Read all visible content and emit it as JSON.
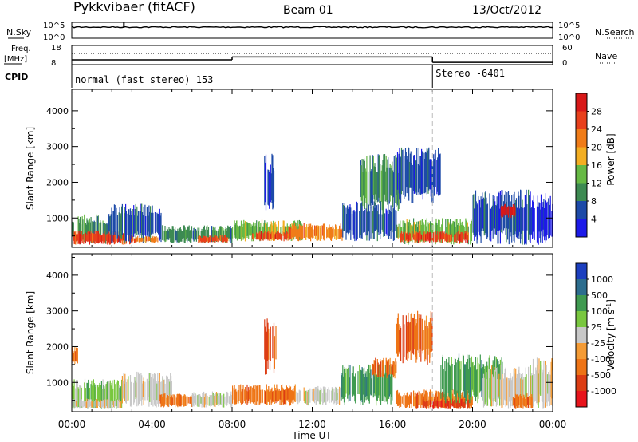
{
  "header": {
    "station": "Pykkvibaer (fitACF)",
    "beam": "Beam 01",
    "date": "13/Oct/2012"
  },
  "summary_panels": {
    "nsky_label": "N.Sky",
    "nsearch_label": "N.Search",
    "nsky_ticks": [
      "10^5",
      "10^0"
    ],
    "nsearch_ticks": [
      "10^5",
      "10^0"
    ],
    "freq_label": "Freq.",
    "freq_unit": "[MHz]",
    "freq_ticks": [
      "18",
      "8"
    ],
    "nave_label": "Nave",
    "nave_ticks": [
      "60",
      "0"
    ],
    "cpid_label": "CPID",
    "cpid_segments": [
      {
        "label": "normal (fast stereo) 153",
        "start_hour": 0
      },
      {
        "label": "Stereo -6401",
        "start_hour": 18.0
      }
    ],
    "freq_trace": [
      {
        "start": 0,
        "end": 8.0,
        "value": 10.5
      },
      {
        "start": 8.0,
        "end": 18.0,
        "value": 12.0
      },
      {
        "start": 18.0,
        "end": 24.0,
        "value": 9.2
      }
    ]
  },
  "chart_data": [
    {
      "type": "heatmap",
      "name": "power-panel",
      "xlabel": "",
      "ylabel": "Slant Range [km]",
      "xlim": [
        0,
        24
      ],
      "ylim": [
        180,
        4600
      ],
      "yticks": [
        1000,
        2000,
        3000,
        4000
      ],
      "colorbar": {
        "label": "Power [dB]",
        "ticks": [
          "28",
          "24",
          "20",
          "16",
          "12",
          "8",
          "4"
        ],
        "colors": [
          "#d81818",
          "#e8401c",
          "#f07c18",
          "#f3ae22",
          "#66b944",
          "#3d8a52",
          "#1d4aa8",
          "#1c1ae8"
        ]
      },
      "regions": [
        {
          "x0": 0.0,
          "x1": 1.8,
          "y0": 250,
          "y1": 1100,
          "level": 5
        },
        {
          "x0": 0.0,
          "x1": 3.0,
          "y0": 250,
          "y1": 650,
          "level": 1
        },
        {
          "x0": 1.8,
          "x1": 4.5,
          "y0": 300,
          "y1": 1400,
          "level": 6
        },
        {
          "x0": 3.0,
          "x1": 4.3,
          "y0": 300,
          "y1": 500,
          "level": 2
        },
        {
          "x0": 4.5,
          "x1": 8.0,
          "y0": 300,
          "y1": 800,
          "level": 5
        },
        {
          "x0": 6.3,
          "x1": 7.8,
          "y0": 300,
          "y1": 520,
          "level": 1
        },
        {
          "x0": 8.0,
          "x1": 11.5,
          "y0": 350,
          "y1": 950,
          "level": 4
        },
        {
          "x0": 9.0,
          "x1": 10.8,
          "y0": 350,
          "y1": 650,
          "level": 1
        },
        {
          "x0": 10.8,
          "x1": 13.5,
          "y0": 350,
          "y1": 850,
          "level": 2
        },
        {
          "x0": 9.6,
          "x1": 10.2,
          "y0": 1200,
          "y1": 2800,
          "level": 6
        },
        {
          "x0": 13.5,
          "x1": 16.2,
          "y0": 350,
          "y1": 1500,
          "level": 6
        },
        {
          "x0": 14.4,
          "x1": 16.4,
          "y0": 1200,
          "y1": 2800,
          "level": 5
        },
        {
          "x0": 16.2,
          "x1": 20.0,
          "y0": 250,
          "y1": 1000,
          "level": 4
        },
        {
          "x0": 16.4,
          "x1": 19.8,
          "y0": 300,
          "y1": 650,
          "level": 1
        },
        {
          "x0": 16.2,
          "x1": 18.4,
          "y0": 1400,
          "y1": 3000,
          "level": 6
        },
        {
          "x0": 20.0,
          "x1": 23.0,
          "y0": 250,
          "y1": 1800,
          "level": 6
        },
        {
          "x0": 21.4,
          "x1": 22.2,
          "y0": 1000,
          "y1": 1400,
          "level": 0
        },
        {
          "x0": 23.0,
          "x1": 24.0,
          "y0": 250,
          "y1": 1700,
          "level": 7
        }
      ]
    },
    {
      "type": "heatmap",
      "name": "velocity-panel",
      "xlabel": "Time UT",
      "ylabel": "Slant Range [km]",
      "xlim": [
        0,
        24
      ],
      "ylim": [
        180,
        4600
      ],
      "yticks": [
        1000,
        2000,
        3000,
        4000
      ],
      "xticks": [
        "00:00",
        "04:00",
        "08:00",
        "12:00",
        "16:00",
        "20:00",
        "00:00"
      ],
      "colorbar": {
        "label": "Velocity [m s^-1]",
        "ticks": [
          "1000",
          "500",
          "100",
          "25",
          "-25",
          "-100",
          "-500",
          "-1000"
        ],
        "colors": [
          "#1c3fbf",
          "#2c6d8e",
          "#3f9a50",
          "#79c73f",
          "#c8c8c8",
          "#f49b35",
          "#ee7416",
          "#dc3d14",
          "#e8141c"
        ]
      },
      "regions": [
        {
          "x0": 0.0,
          "x1": 2.5,
          "y0": 250,
          "y1": 1100,
          "level": 3
        },
        {
          "x0": 0.0,
          "x1": 2.5,
          "y0": 250,
          "y1": 550,
          "level": 4
        },
        {
          "x0": 0.0,
          "x1": 0.3,
          "y0": 1500,
          "y1": 2000,
          "level": 6
        },
        {
          "x0": 2.5,
          "x1": 5.0,
          "y0": 300,
          "y1": 1300,
          "level": 4
        },
        {
          "x0": 4.4,
          "x1": 6.0,
          "y0": 300,
          "y1": 700,
          "level": 6
        },
        {
          "x0": 6.0,
          "x1": 8.0,
          "y0": 300,
          "y1": 750,
          "level": 4
        },
        {
          "x0": 8.0,
          "x1": 11.2,
          "y0": 350,
          "y1": 950,
          "level": 6
        },
        {
          "x0": 9.6,
          "x1": 10.2,
          "y0": 1200,
          "y1": 2800,
          "level": 7
        },
        {
          "x0": 11.2,
          "x1": 13.4,
          "y0": 350,
          "y1": 900,
          "level": 4
        },
        {
          "x0": 13.4,
          "x1": 16.0,
          "y0": 350,
          "y1": 1500,
          "level": 2
        },
        {
          "x0": 15.0,
          "x1": 16.2,
          "y0": 1100,
          "y1": 1700,
          "level": 6
        },
        {
          "x0": 16.2,
          "x1": 18.0,
          "y0": 1500,
          "y1": 3000,
          "level": 6
        },
        {
          "x0": 16.2,
          "x1": 20.0,
          "y0": 250,
          "y1": 800,
          "level": 6
        },
        {
          "x0": 17.5,
          "x1": 19.8,
          "y0": 250,
          "y1": 550,
          "level": 7
        },
        {
          "x0": 18.4,
          "x1": 21.5,
          "y0": 400,
          "y1": 1800,
          "level": 2
        },
        {
          "x0": 20.5,
          "x1": 23.0,
          "y0": 250,
          "y1": 1500,
          "level": 4
        },
        {
          "x0": 22.0,
          "x1": 23.0,
          "y0": 250,
          "y1": 700,
          "level": 6
        },
        {
          "x0": 23.0,
          "x1": 24.0,
          "y0": 250,
          "y1": 1700,
          "level": 4
        }
      ]
    }
  ]
}
